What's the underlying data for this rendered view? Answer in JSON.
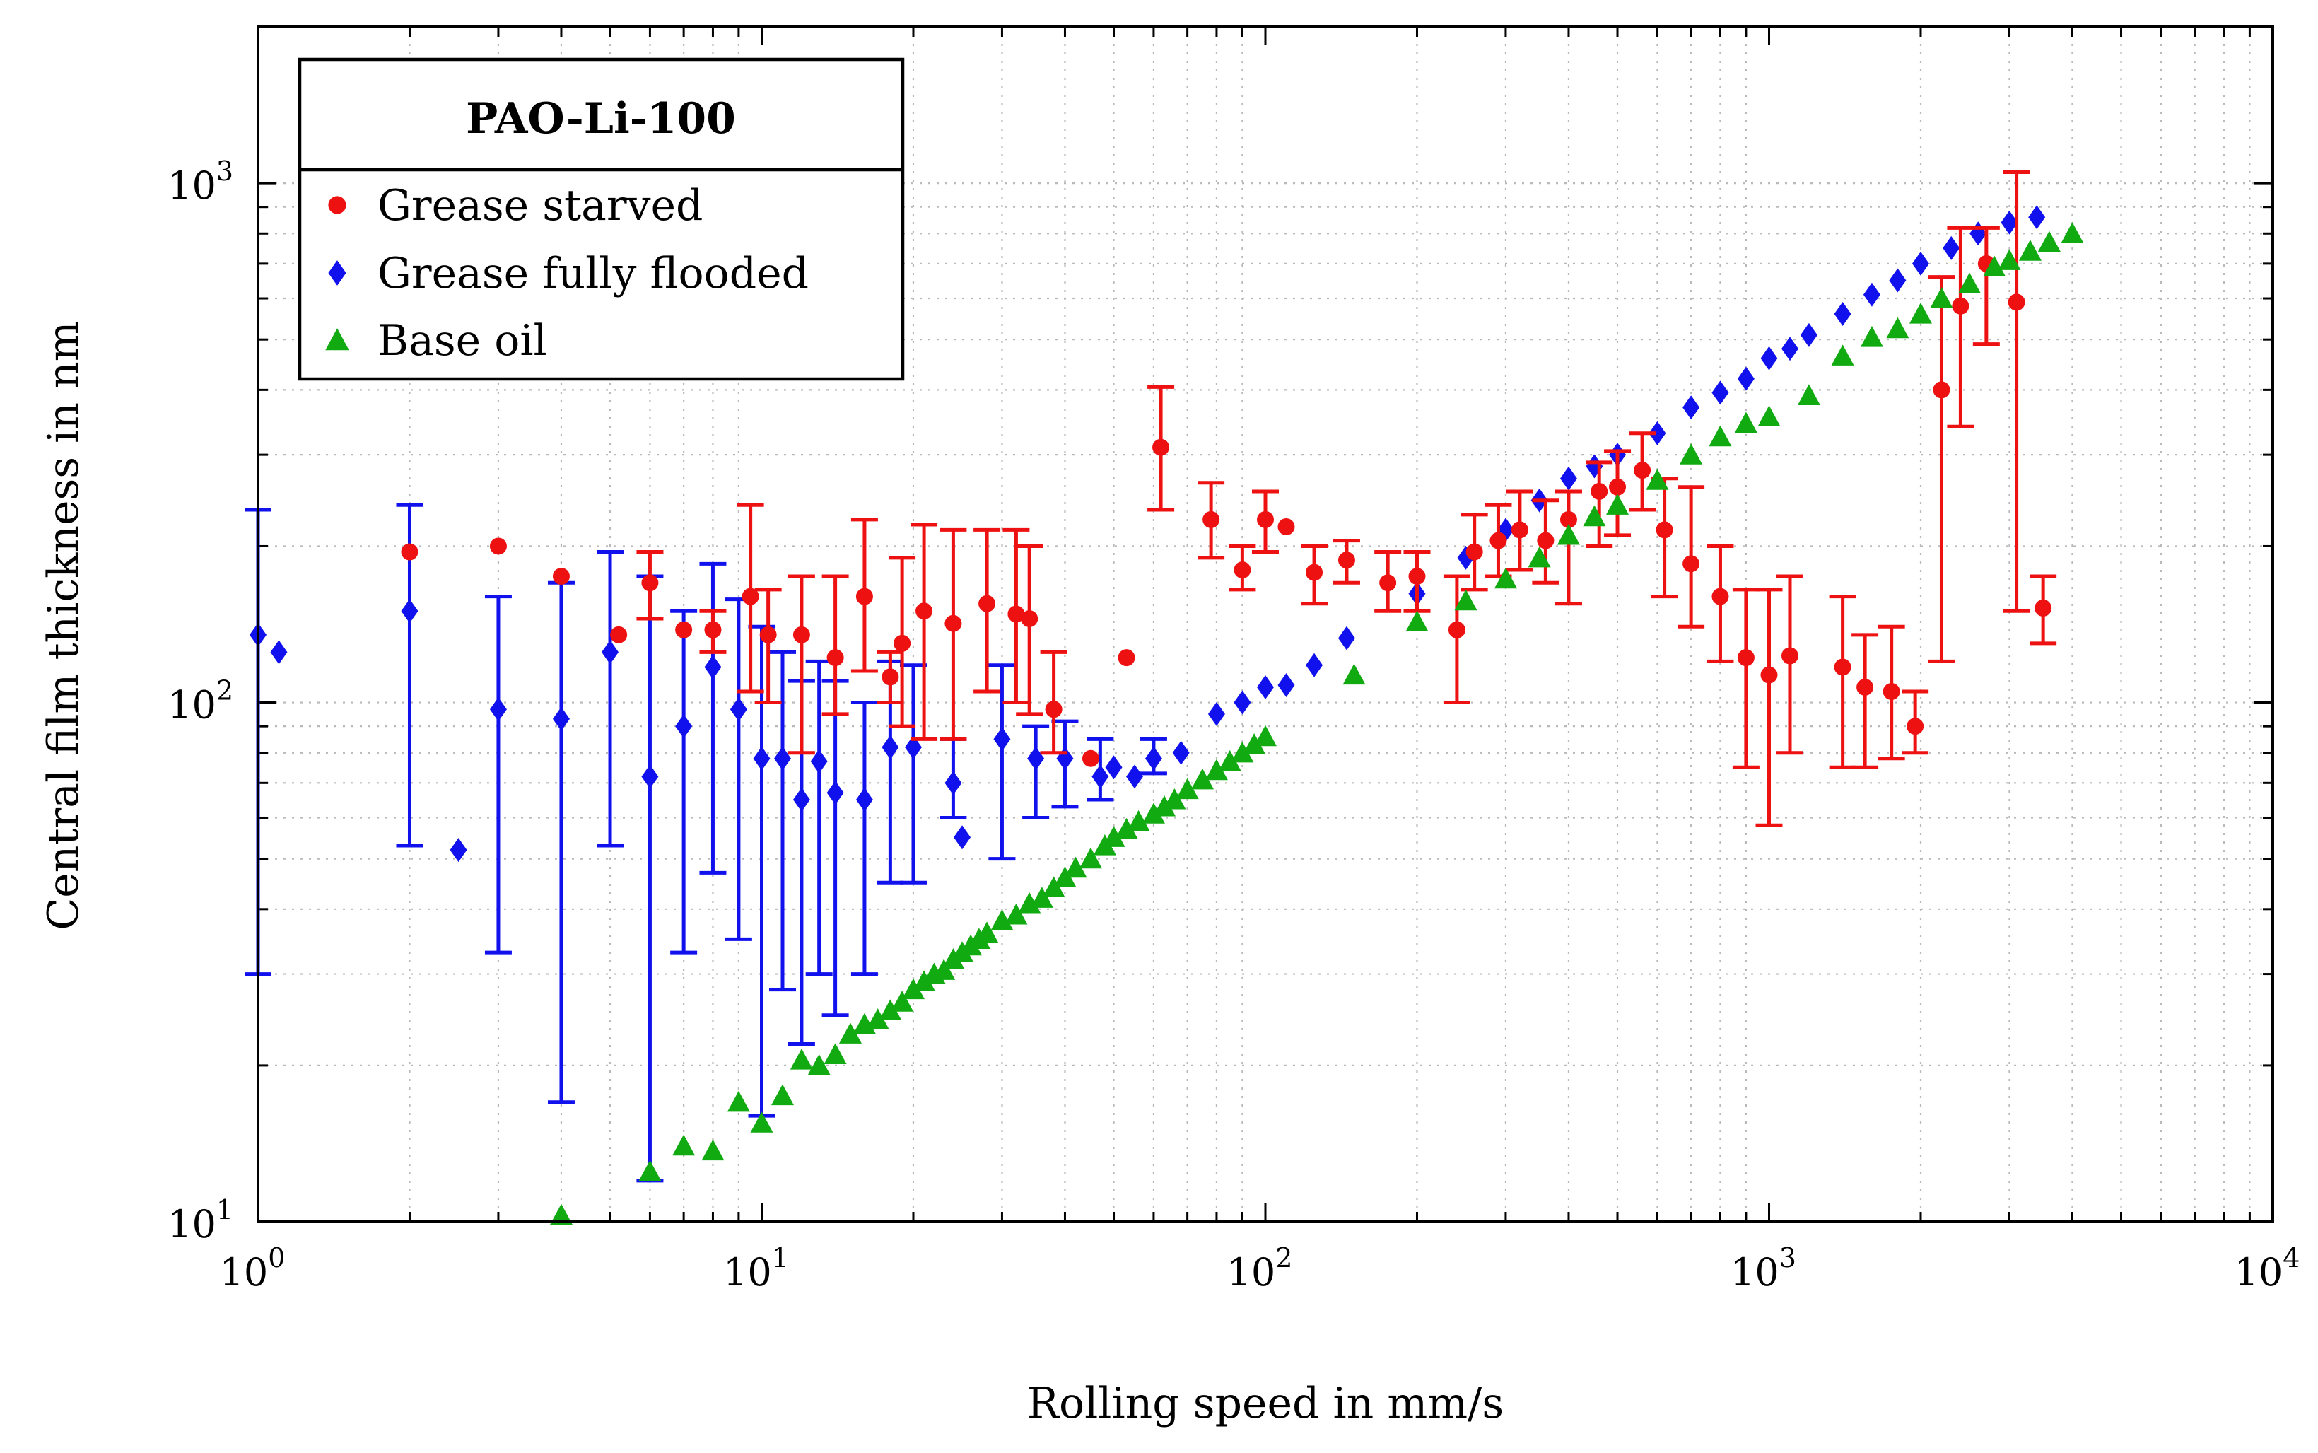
{
  "chart_data": {
    "type": "scatter",
    "title": "",
    "xlabel": "Rolling speed in mm/s",
    "ylabel": "Central film thickness in nm",
    "xscale": "log",
    "yscale": "log",
    "xlim": [
      1,
      10000
    ],
    "ylim": [
      10,
      2000
    ],
    "grid": true,
    "x_ticks": [
      {
        "base": "10",
        "exp": "0"
      },
      {
        "base": "10",
        "exp": "1"
      },
      {
        "base": "10",
        "exp": "2"
      },
      {
        "base": "10",
        "exp": "3"
      },
      {
        "base": "10",
        "exp": "4"
      }
    ],
    "y_ticks": [
      {
        "base": "10",
        "exp": "1"
      },
      {
        "base": "10",
        "exp": "2"
      },
      {
        "base": "10",
        "exp": "3"
      }
    ],
    "legend": {
      "title": "PAO-Li-100",
      "placement": "top-left",
      "entries": [
        "Grease starved",
        "Grease fully flooded",
        "Base oil"
      ]
    },
    "series": [
      {
        "name": "Grease starved",
        "marker": "circle",
        "color": "#ee1111",
        "points": [
          {
            "x": 2,
            "y": 195
          },
          {
            "x": 3,
            "y": 200
          },
          {
            "x": 4,
            "y": 175
          },
          {
            "x": 5.2,
            "y": 135
          },
          {
            "x": 6,
            "y": 170,
            "lo": 145,
            "hi": 195
          },
          {
            "x": 7,
            "y": 138
          },
          {
            "x": 8,
            "y": 138,
            "lo": 125,
            "hi": 150
          },
          {
            "x": 9.5,
            "y": 160,
            "lo": 105,
            "hi": 240
          },
          {
            "x": 10.3,
            "y": 135,
            "lo": 100,
            "hi": 165
          },
          {
            "x": 12,
            "y": 135,
            "lo": 80,
            "hi": 175
          },
          {
            "x": 14,
            "y": 122,
            "lo": 95,
            "hi": 175
          },
          {
            "x": 16,
            "y": 160,
            "lo": 115,
            "hi": 225
          },
          {
            "x": 18,
            "y": 112,
            "lo": 100,
            "hi": 125
          },
          {
            "x": 19,
            "y": 130,
            "lo": 90,
            "hi": 190
          },
          {
            "x": 21,
            "y": 150,
            "lo": 85,
            "hi": 220
          },
          {
            "x": 24,
            "y": 142,
            "lo": 85,
            "hi": 215
          },
          {
            "x": 28,
            "y": 155,
            "lo": 105,
            "hi": 215
          },
          {
            "x": 32,
            "y": 148,
            "lo": 100,
            "hi": 215
          },
          {
            "x": 34,
            "y": 145,
            "lo": 95,
            "hi": 200
          },
          {
            "x": 38,
            "y": 97,
            "lo": 80,
            "hi": 125
          },
          {
            "x": 45,
            "y": 78
          },
          {
            "x": 53,
            "y": 122
          },
          {
            "x": 62,
            "y": 310,
            "lo": 235,
            "hi": 405
          },
          {
            "x": 78,
            "y": 225,
            "lo": 190,
            "hi": 265
          },
          {
            "x": 90,
            "y": 180,
            "lo": 165,
            "hi": 200
          },
          {
            "x": 100,
            "y": 225,
            "lo": 195,
            "hi": 255
          },
          {
            "x": 110,
            "y": 218
          },
          {
            "x": 125,
            "y": 178,
            "lo": 155,
            "hi": 200
          },
          {
            "x": 145,
            "y": 188,
            "lo": 170,
            "hi": 205
          },
          {
            "x": 175,
            "y": 170,
            "lo": 150,
            "hi": 195
          },
          {
            "x": 200,
            "y": 175,
            "lo": 150,
            "hi": 195
          },
          {
            "x": 240,
            "y": 138,
            "lo": 100,
            "hi": 175
          },
          {
            "x": 260,
            "y": 195,
            "lo": 165,
            "hi": 230
          },
          {
            "x": 290,
            "y": 205,
            "lo": 175,
            "hi": 240
          },
          {
            "x": 320,
            "y": 215,
            "lo": 180,
            "hi": 255
          },
          {
            "x": 360,
            "y": 205,
            "lo": 170,
            "hi": 245
          },
          {
            "x": 400,
            "y": 225,
            "lo": 155,
            "hi": 255
          },
          {
            "x": 460,
            "y": 255,
            "lo": 200,
            "hi": 290
          },
          {
            "x": 500,
            "y": 260,
            "lo": 210,
            "hi": 305
          },
          {
            "x": 560,
            "y": 280,
            "lo": 235,
            "hi": 330
          },
          {
            "x": 620,
            "y": 215,
            "lo": 160,
            "hi": 270
          },
          {
            "x": 700,
            "y": 185,
            "lo": 140,
            "hi": 260
          },
          {
            "x": 800,
            "y": 160,
            "lo": 120,
            "hi": 200
          },
          {
            "x": 900,
            "y": 122,
            "lo": 75,
            "hi": 165
          },
          {
            "x": 1000,
            "y": 113,
            "lo": 58,
            "hi": 165
          },
          {
            "x": 1100,
            "y": 123,
            "lo": 80,
            "hi": 175
          },
          {
            "x": 1400,
            "y": 117,
            "lo": 75,
            "hi": 160
          },
          {
            "x": 1550,
            "y": 107,
            "lo": 75,
            "hi": 135
          },
          {
            "x": 1750,
            "y": 105,
            "lo": 78,
            "hi": 140
          },
          {
            "x": 1950,
            "y": 90,
            "lo": 80,
            "hi": 105
          },
          {
            "x": 2200,
            "y": 400,
            "lo": 120,
            "hi": 660
          },
          {
            "x": 2400,
            "y": 580,
            "lo": 340,
            "hi": 820
          },
          {
            "x": 2700,
            "y": 700,
            "lo": 490,
            "hi": 820
          },
          {
            "x": 3100,
            "y": 590,
            "lo": 150,
            "hi": 1050
          },
          {
            "x": 3500,
            "y": 152,
            "lo": 130,
            "hi": 175
          }
        ]
      },
      {
        "name": "Grease fully flooded",
        "marker": "diamond",
        "color": "#1111ee",
        "points": [
          {
            "x": 1,
            "y": 135,
            "lo": 30,
            "hi": 235
          },
          {
            "x": 1.1,
            "y": 125
          },
          {
            "x": 2,
            "y": 150,
            "lo": 53,
            "hi": 240
          },
          {
            "x": 2.5,
            "y": 52
          },
          {
            "x": 3,
            "y": 97,
            "lo": 33,
            "hi": 160
          },
          {
            "x": 4,
            "y": 93,
            "lo": 17,
            "hi": 170
          },
          {
            "x": 5,
            "y": 125,
            "lo": 53,
            "hi": 195
          },
          {
            "x": 6,
            "y": 72,
            "lo": 12,
            "hi": 175
          },
          {
            "x": 7,
            "y": 90,
            "lo": 33,
            "hi": 150
          },
          {
            "x": 8,
            "y": 117,
            "lo": 47,
            "hi": 185
          },
          {
            "x": 9,
            "y": 97,
            "lo": 35,
            "hi": 158
          },
          {
            "x": 10,
            "y": 78,
            "lo": 16,
            "hi": 140
          },
          {
            "x": 11,
            "y": 78,
            "lo": 28,
            "hi": 125
          },
          {
            "x": 12,
            "y": 65,
            "lo": 22,
            "hi": 110
          },
          {
            "x": 13,
            "y": 77,
            "lo": 30,
            "hi": 120
          },
          {
            "x": 14,
            "y": 67,
            "lo": 25,
            "hi": 110
          },
          {
            "x": 16,
            "y": 65,
            "lo": 30,
            "hi": 100
          },
          {
            "x": 18,
            "y": 82,
            "lo": 45,
            "hi": 120
          },
          {
            "x": 20,
            "y": 82,
            "lo": 45,
            "hi": 118
          },
          {
            "x": 24,
            "y": 70,
            "lo": 60,
            "hi": 85
          },
          {
            "x": 25,
            "y": 55
          },
          {
            "x": 30,
            "y": 85,
            "lo": 50,
            "hi": 118
          },
          {
            "x": 35,
            "y": 78,
            "lo": 60,
            "hi": 90
          },
          {
            "x": 40,
            "y": 78,
            "lo": 63,
            "hi": 92
          },
          {
            "x": 47,
            "y": 72,
            "lo": 65,
            "hi": 85
          },
          {
            "x": 50,
            "y": 75
          },
          {
            "x": 55,
            "y": 72
          },
          {
            "x": 60,
            "y": 78,
            "lo": 73,
            "hi": 85
          },
          {
            "x": 68,
            "y": 80
          },
          {
            "x": 80,
            "y": 95
          },
          {
            "x": 90,
            "y": 100
          },
          {
            "x": 100,
            "y": 107
          },
          {
            "x": 110,
            "y": 108
          },
          {
            "x": 125,
            "y": 118
          },
          {
            "x": 145,
            "y": 133
          },
          {
            "x": 200,
            "y": 162
          },
          {
            "x": 250,
            "y": 190
          },
          {
            "x": 300,
            "y": 215
          },
          {
            "x": 350,
            "y": 245
          },
          {
            "x": 400,
            "y": 270
          },
          {
            "x": 450,
            "y": 285
          },
          {
            "x": 500,
            "y": 300
          },
          {
            "x": 600,
            "y": 330
          },
          {
            "x": 700,
            "y": 370
          },
          {
            "x": 800,
            "y": 395
          },
          {
            "x": 900,
            "y": 420
          },
          {
            "x": 1000,
            "y": 460
          },
          {
            "x": 1100,
            "y": 480
          },
          {
            "x": 1200,
            "y": 510
          },
          {
            "x": 1400,
            "y": 560
          },
          {
            "x": 1600,
            "y": 610
          },
          {
            "x": 1800,
            "y": 650
          },
          {
            "x": 2000,
            "y": 700
          },
          {
            "x": 2300,
            "y": 750
          },
          {
            "x": 2600,
            "y": 800
          },
          {
            "x": 3000,
            "y": 840
          },
          {
            "x": 3400,
            "y": 860
          }
        ]
      },
      {
        "name": "Base oil",
        "marker": "triangle",
        "color": "#11aa11",
        "points": [
          {
            "x": 4,
            "y": 10.3
          },
          {
            "x": 6,
            "y": 12.5
          },
          {
            "x": 7,
            "y": 14
          },
          {
            "x": 8,
            "y": 13.7
          },
          {
            "x": 9,
            "y": 17
          },
          {
            "x": 10,
            "y": 15.5
          },
          {
            "x": 11,
            "y": 17.5
          },
          {
            "x": 12,
            "y": 20.5
          },
          {
            "x": 13,
            "y": 20
          },
          {
            "x": 14,
            "y": 21
          },
          {
            "x": 15,
            "y": 23
          },
          {
            "x": 16,
            "y": 24
          },
          {
            "x": 17,
            "y": 24.5
          },
          {
            "x": 18,
            "y": 25.5
          },
          {
            "x": 19,
            "y": 26.5
          },
          {
            "x": 20,
            "y": 28
          },
          {
            "x": 21,
            "y": 29
          },
          {
            "x": 22,
            "y": 30
          },
          {
            "x": 23,
            "y": 30.5
          },
          {
            "x": 24,
            "y": 32
          },
          {
            "x": 25,
            "y": 33
          },
          {
            "x": 26,
            "y": 34
          },
          {
            "x": 27,
            "y": 35
          },
          {
            "x": 28,
            "y": 36
          },
          {
            "x": 30,
            "y": 38
          },
          {
            "x": 32,
            "y": 39
          },
          {
            "x": 34,
            "y": 41
          },
          {
            "x": 36,
            "y": 42
          },
          {
            "x": 38,
            "y": 44
          },
          {
            "x": 40,
            "y": 46
          },
          {
            "x": 42,
            "y": 48
          },
          {
            "x": 45,
            "y": 50
          },
          {
            "x": 48,
            "y": 53
          },
          {
            "x": 50,
            "y": 55
          },
          {
            "x": 53,
            "y": 57
          },
          {
            "x": 56,
            "y": 59
          },
          {
            "x": 60,
            "y": 61
          },
          {
            "x": 63,
            "y": 63
          },
          {
            "x": 66,
            "y": 65
          },
          {
            "x": 70,
            "y": 68
          },
          {
            "x": 75,
            "y": 71
          },
          {
            "x": 80,
            "y": 74
          },
          {
            "x": 85,
            "y": 77
          },
          {
            "x": 90,
            "y": 80
          },
          {
            "x": 95,
            "y": 83
          },
          {
            "x": 100,
            "y": 86
          },
          {
            "x": 150,
            "y": 113
          },
          {
            "x": 200,
            "y": 143
          },
          {
            "x": 250,
            "y": 157
          },
          {
            "x": 300,
            "y": 173
          },
          {
            "x": 350,
            "y": 190
          },
          {
            "x": 400,
            "y": 210
          },
          {
            "x": 450,
            "y": 228
          },
          {
            "x": 500,
            "y": 240
          },
          {
            "x": 600,
            "y": 268
          },
          {
            "x": 700,
            "y": 300
          },
          {
            "x": 800,
            "y": 325
          },
          {
            "x": 900,
            "y": 345
          },
          {
            "x": 1000,
            "y": 355
          },
          {
            "x": 1200,
            "y": 390
          },
          {
            "x": 1400,
            "y": 465
          },
          {
            "x": 1600,
            "y": 505
          },
          {
            "x": 1800,
            "y": 525
          },
          {
            "x": 2000,
            "y": 560
          },
          {
            "x": 2200,
            "y": 600
          },
          {
            "x": 2500,
            "y": 640
          },
          {
            "x": 2800,
            "y": 690
          },
          {
            "x": 3000,
            "y": 710
          },
          {
            "x": 3300,
            "y": 740
          },
          {
            "x": 3600,
            "y": 770
          },
          {
            "x": 4000,
            "y": 800
          }
        ]
      }
    ]
  }
}
